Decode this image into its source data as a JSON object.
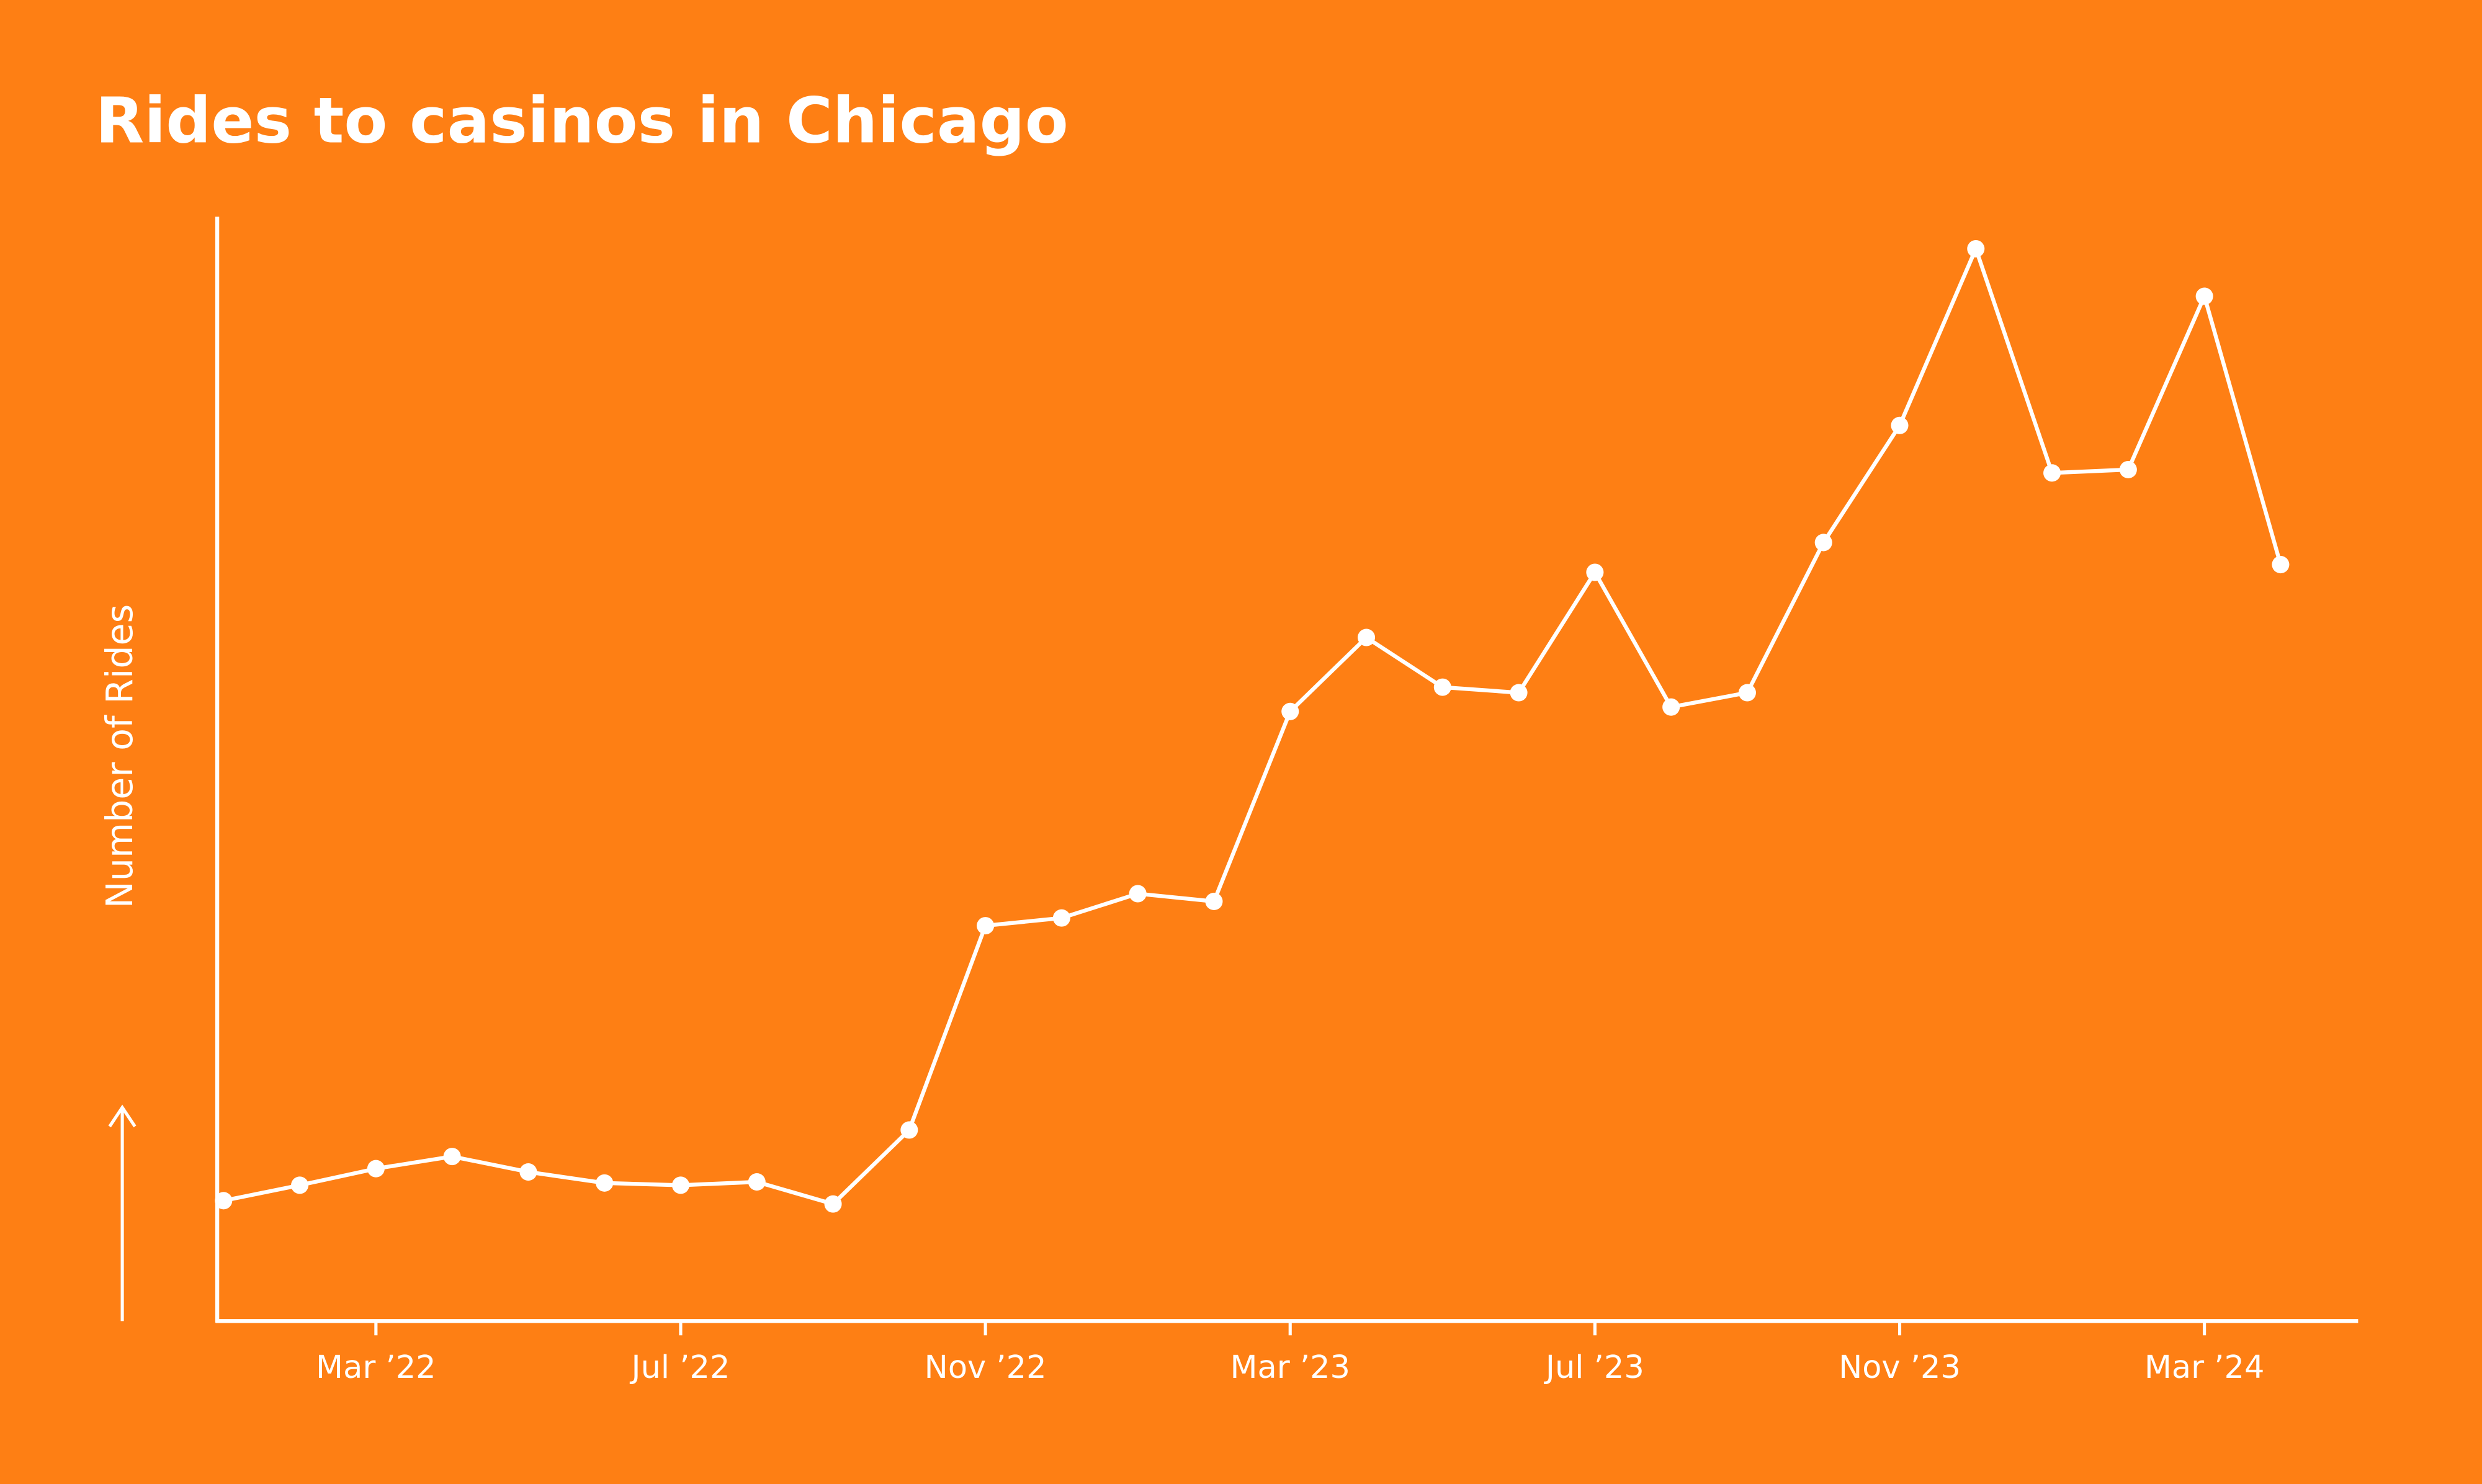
{
  "chart_data": {
    "type": "line",
    "title": "Rides to casinos in Chicago",
    "y_label": "Number of Rides",
    "categories": [
      null,
      null,
      "Mar ’22",
      null,
      null,
      null,
      "Jul ’22",
      null,
      null,
      null,
      "Nov ’22",
      null,
      null,
      null,
      "Mar ’23",
      null,
      null,
      null,
      "Jul ’23",
      null,
      null,
      null,
      "Nov ’23",
      null,
      null,
      null,
      "Mar ’24",
      null
    ],
    "values": [
      10.9,
      12.3,
      13.8,
      14.9,
      13.5,
      12.5,
      12.3,
      12.6,
      10.6,
      17.3,
      35.8,
      36.5,
      38.7,
      38.0,
      55.2,
      61.9,
      57.4,
      56.9,
      67.8,
      55.6,
      56.9,
      70.5,
      81.1,
      97.1,
      76.8,
      77.1,
      92.8,
      68.5
    ],
    "color": "#ffffff",
    "ylim": [
      0,
      100
    ]
  }
}
